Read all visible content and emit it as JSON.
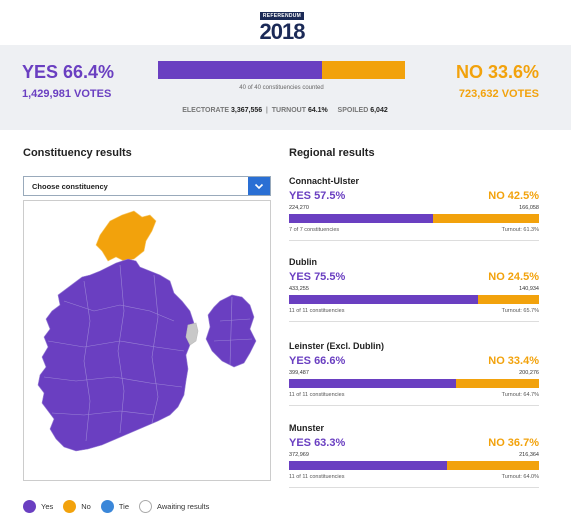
{
  "header": {
    "logo_tag": "REFERENDUM",
    "logo_year": "2018"
  },
  "national": {
    "yes_label": "YES 66.4%",
    "yes_votes": "1,429,981 VOTES",
    "no_label": "NO 33.6%",
    "no_votes": "723,632 VOTES",
    "yes_share": 0.664,
    "counted": "40 of 40 constituencies counted",
    "electorate_label": "ELECTORATE",
    "electorate_value": "3,367,556",
    "turnout_label": "TURNOUT",
    "turnout_value": "64.1%",
    "spoiled_label": "SPOILED",
    "spoiled_value": "6,042"
  },
  "constituency": {
    "heading": "Constituency results",
    "select_value": "Choose constituency"
  },
  "legend": [
    {
      "label": "Yes",
      "color": "#6a3fc1"
    },
    {
      "label": "No",
      "color": "#f2a20c"
    },
    {
      "label": "Tie",
      "color": "#3b87d9"
    },
    {
      "label": "Awaiting results",
      "color": "#ffffff"
    }
  ],
  "regional": {
    "heading": "Regional results",
    "regions": [
      {
        "name": "Connacht-Ulster",
        "yes": "YES 57.5%",
        "no": "NO 42.5%",
        "yes_votes": "224,270",
        "no_votes": "166,058",
        "yes_share": 0.575,
        "constituencies": "7 of 7 constituencies",
        "turnout": "Turnout: 61.3%"
      },
      {
        "name": "Dublin",
        "yes": "YES 75.5%",
        "no": "NO 24.5%",
        "yes_votes": "433,255",
        "no_votes": "140,934",
        "yes_share": 0.755,
        "constituencies": "11 of 11 constituencies",
        "turnout": "Turnout: 65.7%"
      },
      {
        "name": "Leinster (Excl. Dublin)",
        "yes": "YES 66.6%",
        "no": "NO 33.4%",
        "yes_votes": "399,487",
        "no_votes": "200,276",
        "yes_share": 0.666,
        "constituencies": "11 of 11 constituencies",
        "turnout": "Turnout: 64.7%"
      },
      {
        "name": "Munster",
        "yes": "YES 63.3%",
        "no": "NO 36.7%",
        "yes_votes": "372,969",
        "no_votes": "216,364",
        "yes_share": 0.633,
        "constituencies": "11 of 11 constituencies",
        "turnout": "Turnout: 64.0%"
      }
    ]
  },
  "colors": {
    "yes": "#6a3fc1",
    "no": "#f2a20c",
    "tie": "#3b87d9",
    "accent": "#2a6fd4",
    "awaiting": "#c8c8c8"
  }
}
